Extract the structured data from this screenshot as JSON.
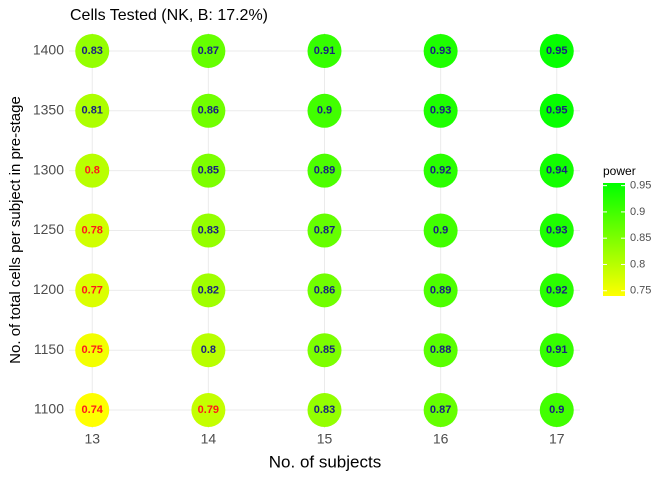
{
  "chart_data": {
    "type": "bubble-grid",
    "title": "Cells Tested (NK, B: 17.2%)",
    "x_label": "No. of subjects",
    "y_label": "No. of total cells per subject in pre-stage",
    "xlim": [
      12.8,
      17.2
    ],
    "xticks": [
      13,
      14,
      15,
      16,
      17
    ],
    "ylim": [
      1085,
      1415
    ],
    "yticks": [
      1100,
      1150,
      1200,
      1250,
      1300,
      1350,
      1400
    ],
    "grid": true,
    "points": [
      {
        "x": 13,
        "y": 1400,
        "value": 0.83,
        "label_color": "#1a237e"
      },
      {
        "x": 14,
        "y": 1400,
        "value": 0.87,
        "label_color": "#1a237e"
      },
      {
        "x": 15,
        "y": 1400,
        "value": 0.91,
        "label_color": "#1a237e"
      },
      {
        "x": 16,
        "y": 1400,
        "value": 0.93,
        "label_color": "#1a237e"
      },
      {
        "x": 17,
        "y": 1400,
        "value": 0.95,
        "label_color": "#1a237e"
      },
      {
        "x": 13,
        "y": 1350,
        "value": 0.81,
        "label_color": "#1a237e"
      },
      {
        "x": 14,
        "y": 1350,
        "value": 0.86,
        "label_color": "#1a237e"
      },
      {
        "x": 15,
        "y": 1350,
        "value": 0.9,
        "label_color": "#1a237e"
      },
      {
        "x": 16,
        "y": 1350,
        "value": 0.93,
        "label_color": "#1a237e"
      },
      {
        "x": 17,
        "y": 1350,
        "value": 0.95,
        "label_color": "#1a237e"
      },
      {
        "x": 13,
        "y": 1300,
        "value": 0.8,
        "label_color": "#ff1a1a"
      },
      {
        "x": 14,
        "y": 1300,
        "value": 0.85,
        "label_color": "#1a237e"
      },
      {
        "x": 15,
        "y": 1300,
        "value": 0.89,
        "label_color": "#1a237e"
      },
      {
        "x": 16,
        "y": 1300,
        "value": 0.92,
        "label_color": "#1a237e"
      },
      {
        "x": 17,
        "y": 1300,
        "value": 0.94,
        "label_color": "#1a237e"
      },
      {
        "x": 13,
        "y": 1250,
        "value": 0.78,
        "label_color": "#ff1a1a"
      },
      {
        "x": 14,
        "y": 1250,
        "value": 0.83,
        "label_color": "#1a237e"
      },
      {
        "x": 15,
        "y": 1250,
        "value": 0.87,
        "label_color": "#1a237e"
      },
      {
        "x": 16,
        "y": 1250,
        "value": 0.9,
        "label_color": "#1a237e"
      },
      {
        "x": 17,
        "y": 1250,
        "value": 0.93,
        "label_color": "#1a237e"
      },
      {
        "x": 13,
        "y": 1200,
        "value": 0.77,
        "label_color": "#ff1a1a"
      },
      {
        "x": 14,
        "y": 1200,
        "value": 0.82,
        "label_color": "#1a237e"
      },
      {
        "x": 15,
        "y": 1200,
        "value": 0.86,
        "label_color": "#1a237e"
      },
      {
        "x": 16,
        "y": 1200,
        "value": 0.89,
        "label_color": "#1a237e"
      },
      {
        "x": 17,
        "y": 1200,
        "value": 0.92,
        "label_color": "#1a237e"
      },
      {
        "x": 13,
        "y": 1150,
        "value": 0.75,
        "label_color": "#ff1a1a"
      },
      {
        "x": 14,
        "y": 1150,
        "value": 0.8,
        "label_color": "#1a237e"
      },
      {
        "x": 15,
        "y": 1150,
        "value": 0.85,
        "label_color": "#1a237e"
      },
      {
        "x": 16,
        "y": 1150,
        "value": 0.88,
        "label_color": "#1a237e"
      },
      {
        "x": 17,
        "y": 1150,
        "value": 0.91,
        "label_color": "#1a237e"
      },
      {
        "x": 13,
        "y": 1100,
        "value": 0.74,
        "label_color": "#ff1a1a"
      },
      {
        "x": 14,
        "y": 1100,
        "value": 0.79,
        "label_color": "#ff1a1a"
      },
      {
        "x": 15,
        "y": 1100,
        "value": 0.83,
        "label_color": "#1a237e"
      },
      {
        "x": 16,
        "y": 1100,
        "value": 0.87,
        "label_color": "#1a237e"
      },
      {
        "x": 17,
        "y": 1100,
        "value": 0.9,
        "label_color": "#1a237e"
      }
    ],
    "color_scale": {
      "title": "power",
      "low": "#ffff00",
      "high": "#00ff00",
      "limits": [
        0.74,
        0.955
      ],
      "ticks": [
        0.75,
        0.8,
        0.85,
        0.9,
        0.95
      ]
    }
  }
}
